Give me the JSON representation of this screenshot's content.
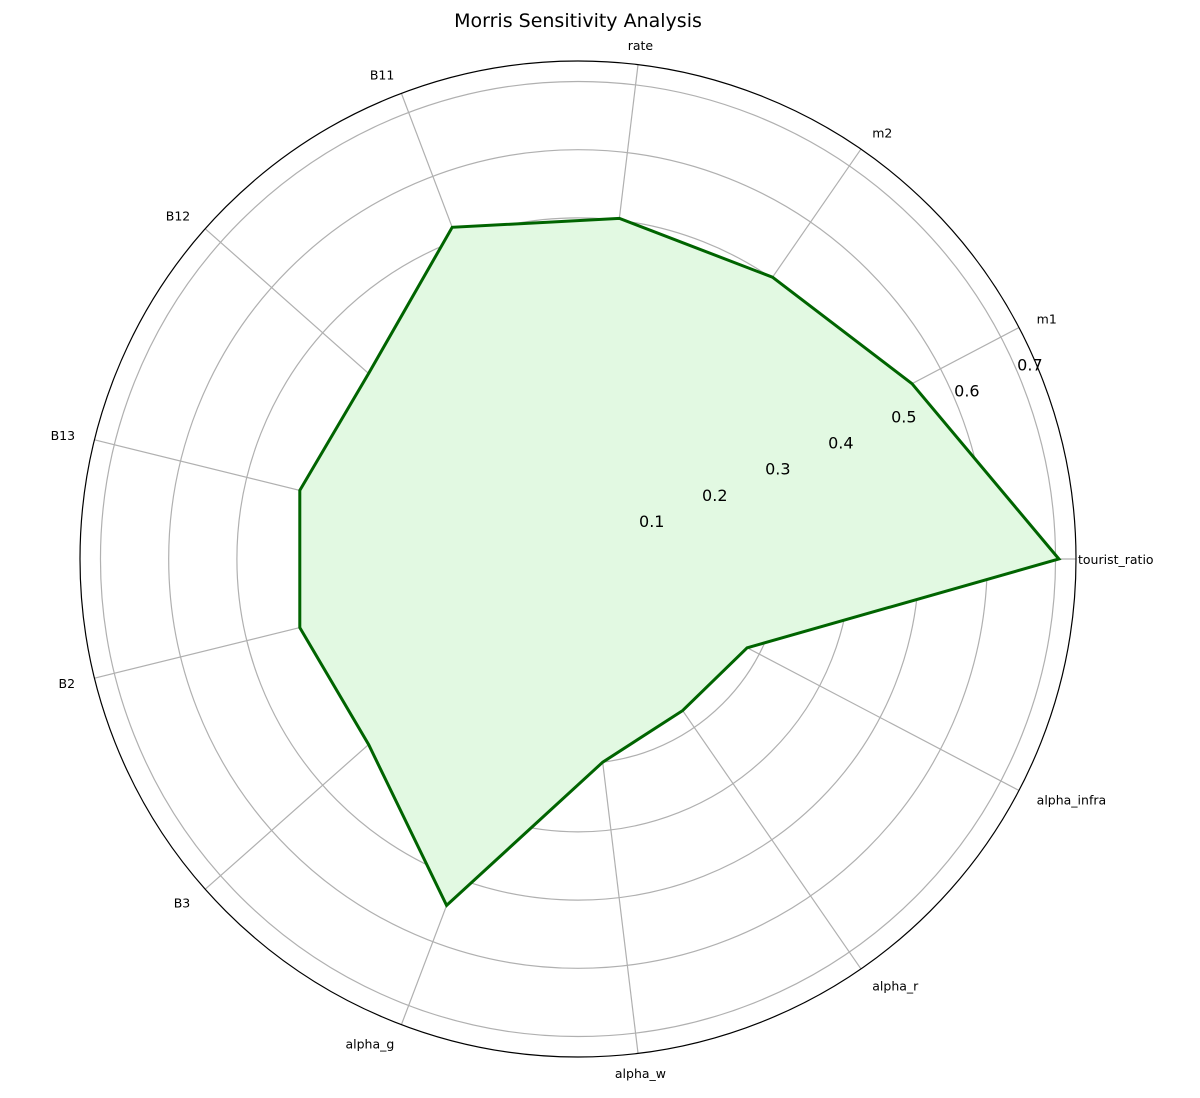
{
  "chart_data": {
    "type": "radar",
    "title": "Morris Sensitivity Analysis",
    "categories": [
      "tourist_ratio",
      "m1",
      "m2",
      "rate",
      "B11",
      "B12",
      "B13",
      "B2",
      "B3",
      "alpha_g",
      "alpha_w",
      "alpha_r",
      "alpha_infra"
    ],
    "series": [
      {
        "values": [
          0.705,
          0.553,
          0.502,
          0.503,
          0.52,
          0.41,
          0.42,
          0.42,
          0.41,
          0.543,
          0.3,
          0.27,
          0.28
        ]
      }
    ],
    "rlim": [
      0,
      0.73
    ],
    "rticks": [
      0.1,
      0.2,
      0.3,
      0.4,
      0.5,
      0.6,
      0.7
    ],
    "rtick_labels": [
      "0.1",
      "0.2",
      "0.3",
      "0.4",
      "0.5",
      "0.6",
      "0.7"
    ],
    "grid": true,
    "legend": "none",
    "colors": {
      "line": "#006400",
      "fill": "#e2f9e2",
      "grid": "#b0b0b0",
      "frame": "#000000"
    }
  }
}
